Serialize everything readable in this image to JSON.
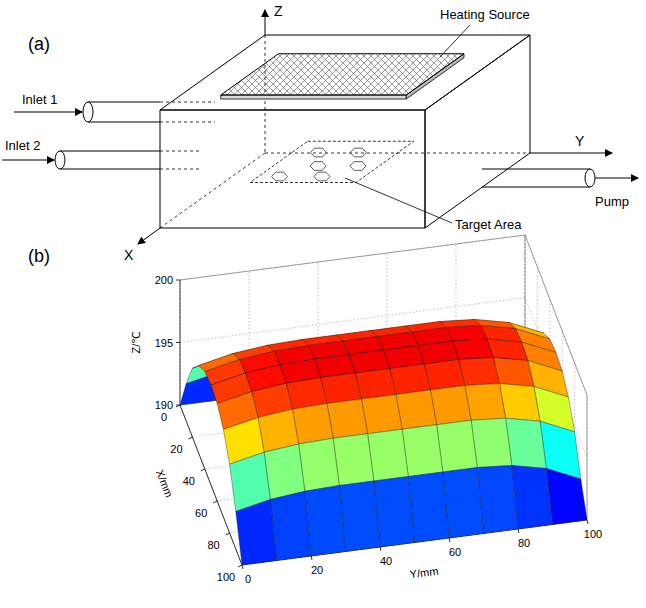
{
  "diagram": {
    "panel_label": "(a)",
    "axes": {
      "x": "X",
      "y": "Y",
      "z": "Z"
    },
    "heating_source": "Heating Source",
    "target_area": "Target Area",
    "inlet_1": "Inlet 1",
    "inlet_2": "Inlet 2",
    "pump": "Pump"
  },
  "chart_data": {
    "type": "surface",
    "panel_label": "(b)",
    "xlabel": "X/mm",
    "ylabel": "Y/mm",
    "zlabel": "Z/℃",
    "x": [
      0,
      10,
      20,
      30,
      40,
      50,
      60,
      70,
      80,
      90,
      100
    ],
    "y": [
      0,
      10,
      20,
      30,
      40,
      50,
      60,
      70,
      80,
      90,
      100
    ],
    "z": [
      [
        190,
        190,
        190,
        190,
        190,
        190,
        190,
        190,
        190,
        190,
        190
      ],
      [
        193,
        193.6,
        193.9,
        194,
        194,
        194,
        194,
        194,
        193.8,
        193.2,
        192
      ],
      [
        195.5,
        196.1,
        196.4,
        196.5,
        196.5,
        196.5,
        196.5,
        196.5,
        196.3,
        195.7,
        194.5
      ],
      [
        197,
        197.6,
        197.9,
        198,
        198,
        198,
        198,
        198,
        197.8,
        197.2,
        196
      ],
      [
        197.8,
        198.4,
        198.7,
        198.8,
        198.8,
        198.8,
        198.8,
        198.8,
        198.6,
        198,
        196.8
      ],
      [
        198,
        198.6,
        198.9,
        199,
        199,
        199,
        199,
        199,
        198.8,
        198.2,
        197
      ],
      [
        197.8,
        198.4,
        198.7,
        198.8,
        198.8,
        198.8,
        198.8,
        198.8,
        198.6,
        198,
        196.8
      ],
      [
        197,
        197.6,
        197.9,
        198,
        198,
        198,
        198,
        198,
        197.8,
        197.2,
        196
      ],
      [
        195.5,
        196.1,
        196.4,
        196.5,
        196.5,
        196.5,
        196.5,
        196.5,
        196.3,
        195.7,
        194.5
      ],
      [
        193,
        193.6,
        193.9,
        194,
        194,
        194,
        194,
        194,
        193.8,
        193.2,
        192
      ],
      [
        190,
        190,
        190,
        190,
        190,
        190,
        190,
        190,
        190,
        190,
        190
      ]
    ],
    "xlim": [
      0,
      100
    ],
    "ylim": [
      0,
      100
    ],
    "zlim": [
      190,
      200
    ],
    "xticks": [
      0,
      20,
      40,
      60,
      80,
      100
    ],
    "yticks": [
      0,
      20,
      40,
      60,
      80,
      100
    ],
    "zticks": [
      190,
      195,
      200
    ],
    "grid": true
  }
}
